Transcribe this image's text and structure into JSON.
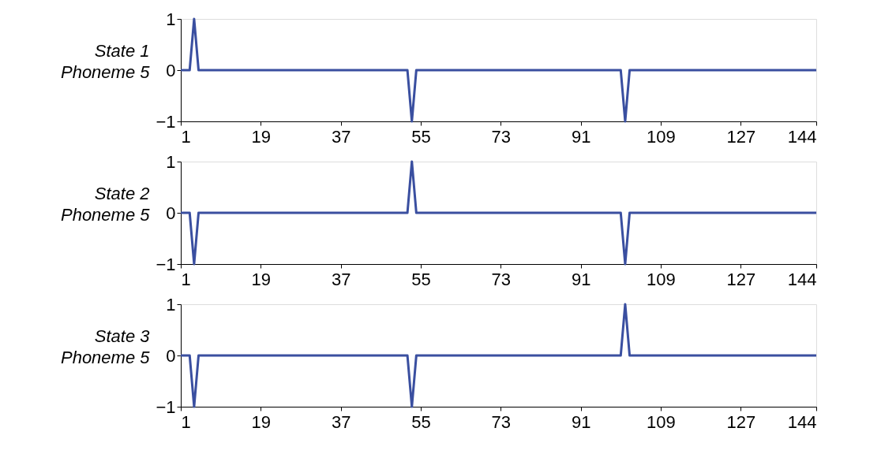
{
  "chart_data": [
    {
      "type": "line",
      "ylabel": "State 1\nPhoneme 5",
      "xlim": [
        1,
        144
      ],
      "xticks": [
        1,
        19,
        37,
        55,
        73,
        91,
        109,
        127,
        144
      ],
      "ylim": [
        -1,
        1
      ],
      "yticks": [
        -1,
        0,
        1
      ],
      "grid": false,
      "marker": "none",
      "line_style": "solid",
      "series": [
        {
          "color": "#3a4fa0",
          "x": [
            1,
            3,
            4,
            5,
            52,
            53,
            54,
            100,
            101,
            102,
            144
          ],
          "values": [
            0,
            0,
            1,
            0,
            0,
            -1,
            0,
            0,
            -1,
            0,
            0
          ]
        }
      ]
    },
    {
      "type": "line",
      "ylabel": "State 2\nPhoneme 5",
      "xlim": [
        1,
        144
      ],
      "xticks": [
        1,
        19,
        37,
        55,
        73,
        91,
        109,
        127,
        144
      ],
      "ylim": [
        -1,
        1
      ],
      "yticks": [
        -1,
        0,
        1
      ],
      "grid": false,
      "marker": "none",
      "line_style": "solid",
      "series": [
        {
          "color": "#3a4fa0",
          "x": [
            1,
            3,
            4,
            5,
            52,
            53,
            54,
            100,
            101,
            102,
            144
          ],
          "values": [
            0,
            0,
            -1,
            0,
            0,
            1,
            0,
            0,
            -1,
            0,
            0
          ]
        }
      ]
    },
    {
      "type": "line",
      "ylabel": "State 3\nPhoneme 5",
      "xlim": [
        1,
        144
      ],
      "xticks": [
        1,
        19,
        37,
        55,
        73,
        91,
        109,
        127,
        144
      ],
      "ylim": [
        -1,
        1
      ],
      "yticks": [
        -1,
        0,
        1
      ],
      "grid": false,
      "marker": "none",
      "line_style": "solid",
      "series": [
        {
          "color": "#3a4fa0",
          "x": [
            1,
            3,
            4,
            5,
            52,
            53,
            54,
            100,
            101,
            102,
            144
          ],
          "values": [
            0,
            0,
            -1,
            0,
            0,
            -1,
            0,
            0,
            1,
            0,
            0
          ]
        }
      ]
    }
  ]
}
